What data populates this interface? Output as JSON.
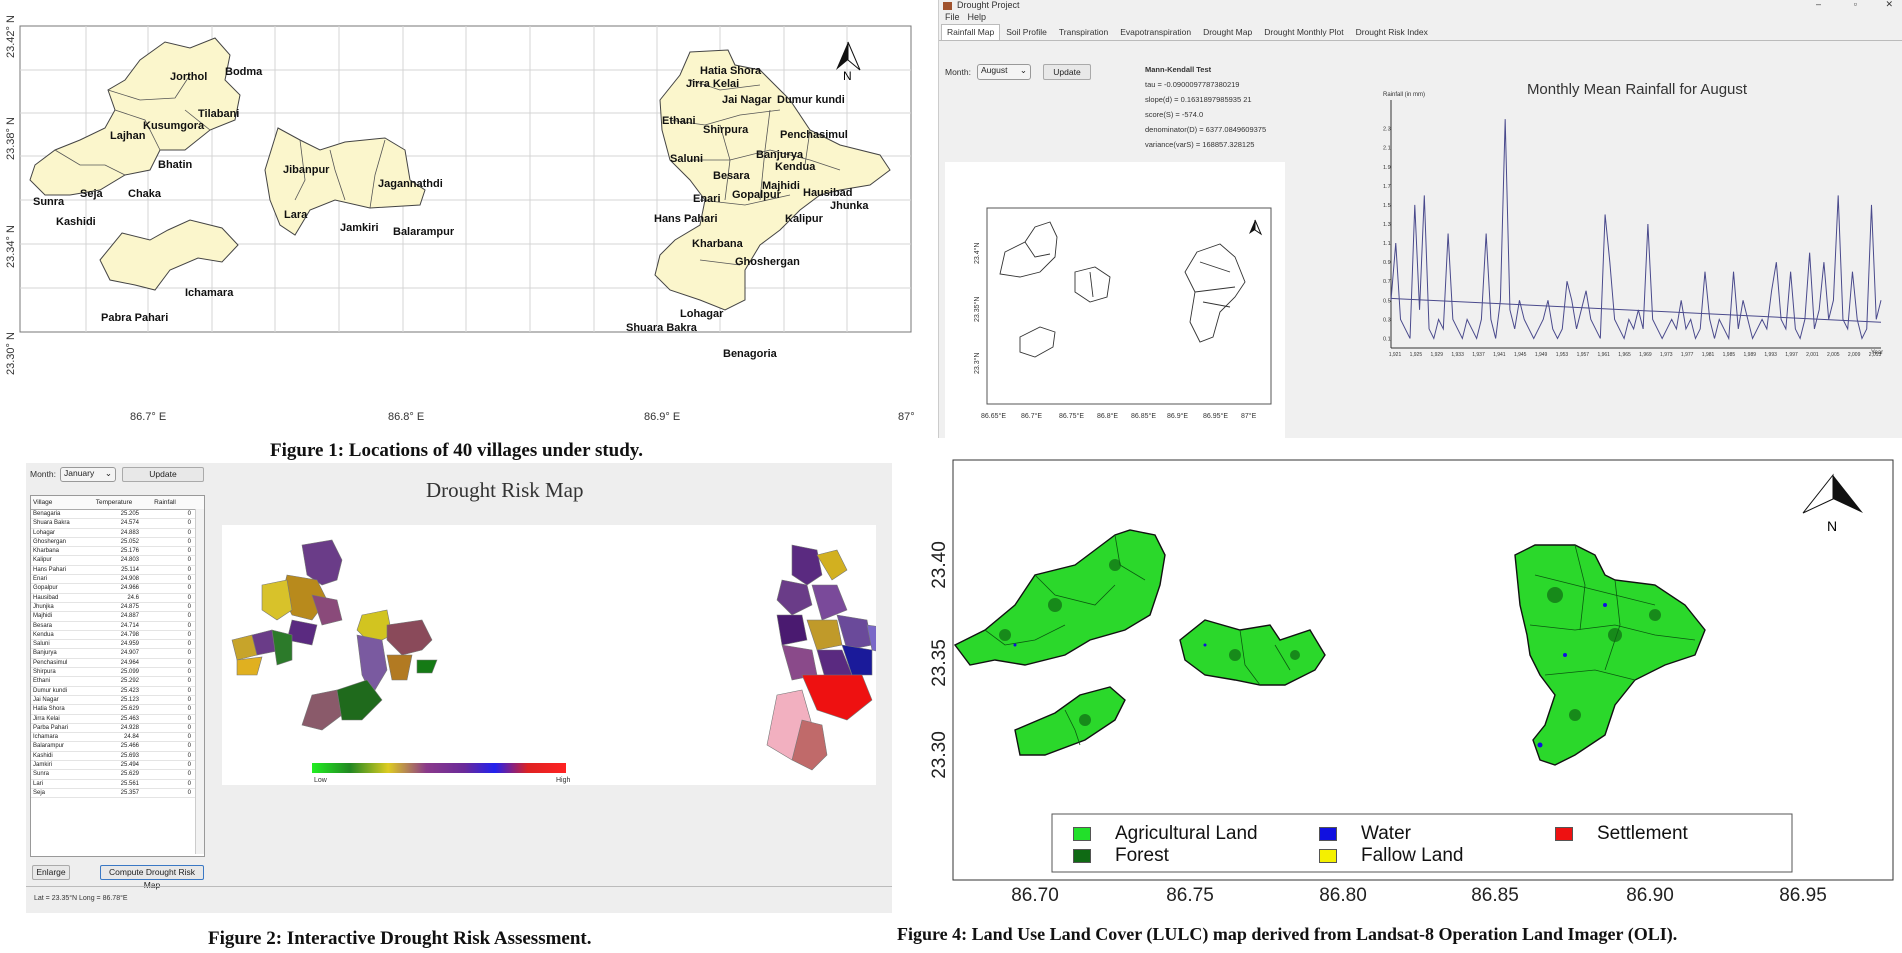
{
  "fig1": {
    "caption": "Figure 1:  Locations of 40 villages under study.",
    "y_ticks": [
      "23.42° N",
      "23.38° N",
      "23.34° N",
      "23.30° N"
    ],
    "x_ticks": [
      "86.7° E",
      "86.8° E",
      "86.9° E",
      "87° E"
    ],
    "north": "N",
    "villages": [
      "Jorthol",
      "Bodma",
      "Tilabani",
      "Kusumgora",
      "Lajhan",
      "Bhatin",
      "Sunra",
      "Seja",
      "Chaka",
      "Kashidi",
      "Jibanpur",
      "Jagannathdi",
      "Lara",
      "Jamkiri",
      "Balarampur",
      "Ichamara",
      "Pabra Pahari",
      "Hatia Shora",
      "Jirra Kelai",
      "Jai Nagar",
      "Dumur kundi",
      "Ethani",
      "Shirpura",
      "Penchasimul",
      "Saluni",
      "Banjurya",
      "Kendua",
      "Besara",
      "Majhidi",
      "Hausibad",
      "Enari",
      "Gopalpur",
      "Jhunka",
      "Hans Pahari",
      "Kalipur",
      "Kharbana",
      "Ghoshergan",
      "Lohagar",
      "Shuara Bakra",
      "Benagoria"
    ]
  },
  "fig3": {
    "window_title": "Drought Project",
    "menu": [
      "File",
      "Help"
    ],
    "tabs": [
      "Rainfall Map",
      "Soil Profile",
      "Transpiration",
      "Evapotranspiration",
      "Drought Map",
      "Drought Monthly Plot",
      "Drought Risk Index"
    ],
    "month_label": "Month:",
    "month_value": "August",
    "update_label": "Update",
    "mk_title": "Mann-Kendall Test",
    "mk_lines": [
      "tau = -0.0900097787380219",
      "slope(d) = 0.1631897985935 21",
      "score(S) = -574.0",
      "denominator(D) = 6377.0849609375",
      "variance(varS) = 168857.328125"
    ],
    "map_y_ticks": [
      "23.4°N",
      "23.35°N",
      "23.3°N"
    ],
    "map_x_ticks": [
      "86.65°E",
      "86.7°E",
      "86.75°E",
      "86.8°E",
      "86.85°E",
      "86.9°E",
      "86.95°E",
      "87°E"
    ],
    "north": "N",
    "chart_data": {
      "type": "line",
      "title": "Monthly Mean Rainfall for August",
      "ylabel": "Rainfall (in mm)",
      "xlabel": "Year",
      "ylim": [
        0,
        2.6
      ],
      "y_ticks": [
        "0.1",
        "0.3",
        "0.5",
        "0.7",
        "0.9",
        "1.1",
        "1.3",
        "1.5",
        "1.7",
        "1.9",
        "2.1",
        "2.3"
      ],
      "x_tick_labels": [
        "1,921",
        "1,925",
        "1,929",
        "1,933",
        "1,937",
        "1,941",
        "1,945",
        "1,949",
        "1,953",
        "1,957",
        "1,961",
        "1,965",
        "1,969",
        "1,973",
        "1,977",
        "1,981",
        "1,985",
        "1,989",
        "1,993",
        "1,997",
        "2,001",
        "2,005",
        "2,009",
        "2,013"
      ],
      "series": [
        {
          "values": [
            0.5,
            1.1,
            0.3,
            0.2,
            0.1,
            1.5,
            0.4,
            1.6,
            0.2,
            0.1,
            0.3,
            0.2,
            1.2,
            0.3,
            0.2,
            0.1,
            0.3,
            0.2,
            0.1,
            0.3,
            1.2,
            0.3,
            0.1,
            0.5,
            2.4,
            0.4,
            0.2,
            0.5,
            0.3,
            0.2,
            0.1,
            0.2,
            0.3,
            0.5,
            0.2,
            0.1,
            0.2,
            0.7,
            0.5,
            0.2,
            0.4,
            0.6,
            0.3,
            0.2,
            0.1,
            1.4,
            0.9,
            0.3,
            0.2,
            0.1,
            0.3,
            0.2,
            0.4,
            0.2,
            1.3,
            0.3,
            0.2,
            0.1,
            0.2,
            0.3,
            0.2,
            0.5,
            0.2,
            0.3,
            0.1,
            0.2,
            0.8,
            0.3,
            0.1,
            0.3,
            0.2,
            0.1,
            0.8,
            0.2,
            0.5,
            0.3,
            0.1,
            0.2,
            0.3,
            0.2,
            0.6,
            0.9,
            0.3,
            0.2,
            0.8,
            0.2,
            0.1,
            0.3,
            1.0,
            0.2,
            0.4,
            0.9,
            0.3,
            0.5,
            1.6,
            0.3,
            0.2,
            0.8,
            0.3,
            0.1,
            0.2,
            1.5,
            0.3,
            0.5
          ]
        },
        {
          "values": [
            0.52,
            0.27
          ]
        }
      ]
    }
  },
  "fig2": {
    "caption": "Figure 2:  Interactive Drought Risk Assessment.",
    "month_label": "Month:",
    "month_value": "January",
    "update_label": "Update",
    "headers": [
      "Village",
      "Temperature",
      "Rainfall"
    ],
    "rows": [
      [
        "Benagaria",
        "25.205",
        "0"
      ],
      [
        "Shuara Bakra",
        "24.574",
        "0"
      ],
      [
        "Lohagar",
        "24.883",
        "0"
      ],
      [
        "Ghoshergan",
        "25.052",
        "0"
      ],
      [
        "Kharbana",
        "25.176",
        "0"
      ],
      [
        "Kalipur",
        "24.803",
        "0"
      ],
      [
        "Hans Pahari",
        "25.114",
        "0"
      ],
      [
        "Enari",
        "24.908",
        "0"
      ],
      [
        "Gopalpur",
        "24.966",
        "0"
      ],
      [
        "Hausibad",
        "24.6",
        "0"
      ],
      [
        "Jhunjka",
        "24.875",
        "0"
      ],
      [
        "Majhidi",
        "24.887",
        "0"
      ],
      [
        "Besara",
        "24.714",
        "0"
      ],
      [
        "Kendua",
        "24.798",
        "0"
      ],
      [
        "Saluni",
        "24.959",
        "0"
      ],
      [
        "Banjurya",
        "24.907",
        "0"
      ],
      [
        "Penchasimul",
        "24.964",
        "0"
      ],
      [
        "Shirpura",
        "25.099",
        "0"
      ],
      [
        "Ethani",
        "25.292",
        "0"
      ],
      [
        "Dumur kundi",
        "25.423",
        "0"
      ],
      [
        "Jai Nagar",
        "25.123",
        "0"
      ],
      [
        "Hatia Shora",
        "25.629",
        "0"
      ],
      [
        "Jirra Kelai",
        "25.463",
        "0"
      ],
      [
        "Parba Pahari",
        "24.928",
        "0"
      ],
      [
        "Ichamara",
        "24.84",
        "0"
      ],
      [
        "Balarampur",
        "25.466",
        "0"
      ],
      [
        "Kashidi",
        "25.693",
        "0"
      ],
      [
        "Jamkiri",
        "25.494",
        "0"
      ],
      [
        "Sunra",
        "25.629",
        "0"
      ],
      [
        "Lari",
        "25.561",
        "0"
      ],
      [
        "Seja",
        "25.357",
        "0"
      ]
    ],
    "enlarge_label": "Enlarge",
    "compute_label": "Compute Drought Risk Map",
    "status": "Lat = 23.35°N  Long = 86.78°E",
    "map_title": "Drought Risk Map",
    "scale_low": "Low",
    "scale_high": "High"
  },
  "fig4": {
    "caption": "Figure 4: Land Use Land Cover (LULC) map derived from Landsat-8 Operation Land Imager (OLI).",
    "y_ticks": [
      "23.40",
      "23.35",
      "23.30"
    ],
    "x_ticks": [
      "86.70",
      "86.75",
      "86.80",
      "86.85",
      "86.90",
      "86.95"
    ],
    "north": "N",
    "legend": [
      {
        "label": "Agricultural Land",
        "color": "#22e02a"
      },
      {
        "label": "Water",
        "color": "#1010e0"
      },
      {
        "label": "Settlement",
        "color": "#ee1111"
      },
      {
        "label": "Forest",
        "color": "#0f6a14"
      },
      {
        "label": "Fallow Land",
        "color": "#f4f000"
      }
    ]
  }
}
